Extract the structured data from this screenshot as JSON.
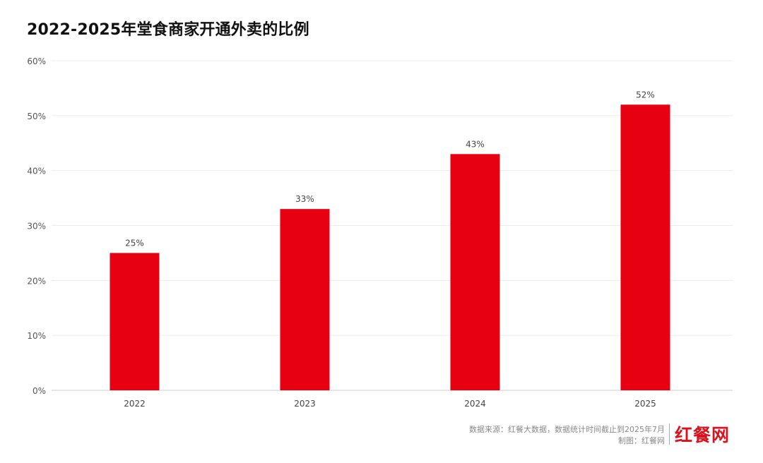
{
  "chart_data": {
    "type": "bar",
    "title": "2022-2025年堂食商家开通外卖的比例",
    "categories": [
      "2022",
      "2023",
      "2024",
      "2025"
    ],
    "values": [
      25,
      33,
      43,
      52
    ],
    "data_labels": [
      "25%",
      "33%",
      "43%",
      "52%"
    ],
    "xlabel": "",
    "ylabel": "",
    "ylim": [
      0,
      60
    ],
    "yticks": [
      0,
      10,
      20,
      30,
      40,
      50,
      60
    ],
    "ytick_labels": [
      "0%",
      "10%",
      "20%",
      "30%",
      "40%",
      "50%",
      "60%"
    ],
    "grid": true,
    "bar_color": "#e60012"
  },
  "footer": {
    "source": "数据来源：红餐大数据，数据统计时间截止到2025年7月",
    "credit": "制图：红餐网",
    "logo": "红餐网",
    "logo_color": "#d9121e"
  }
}
